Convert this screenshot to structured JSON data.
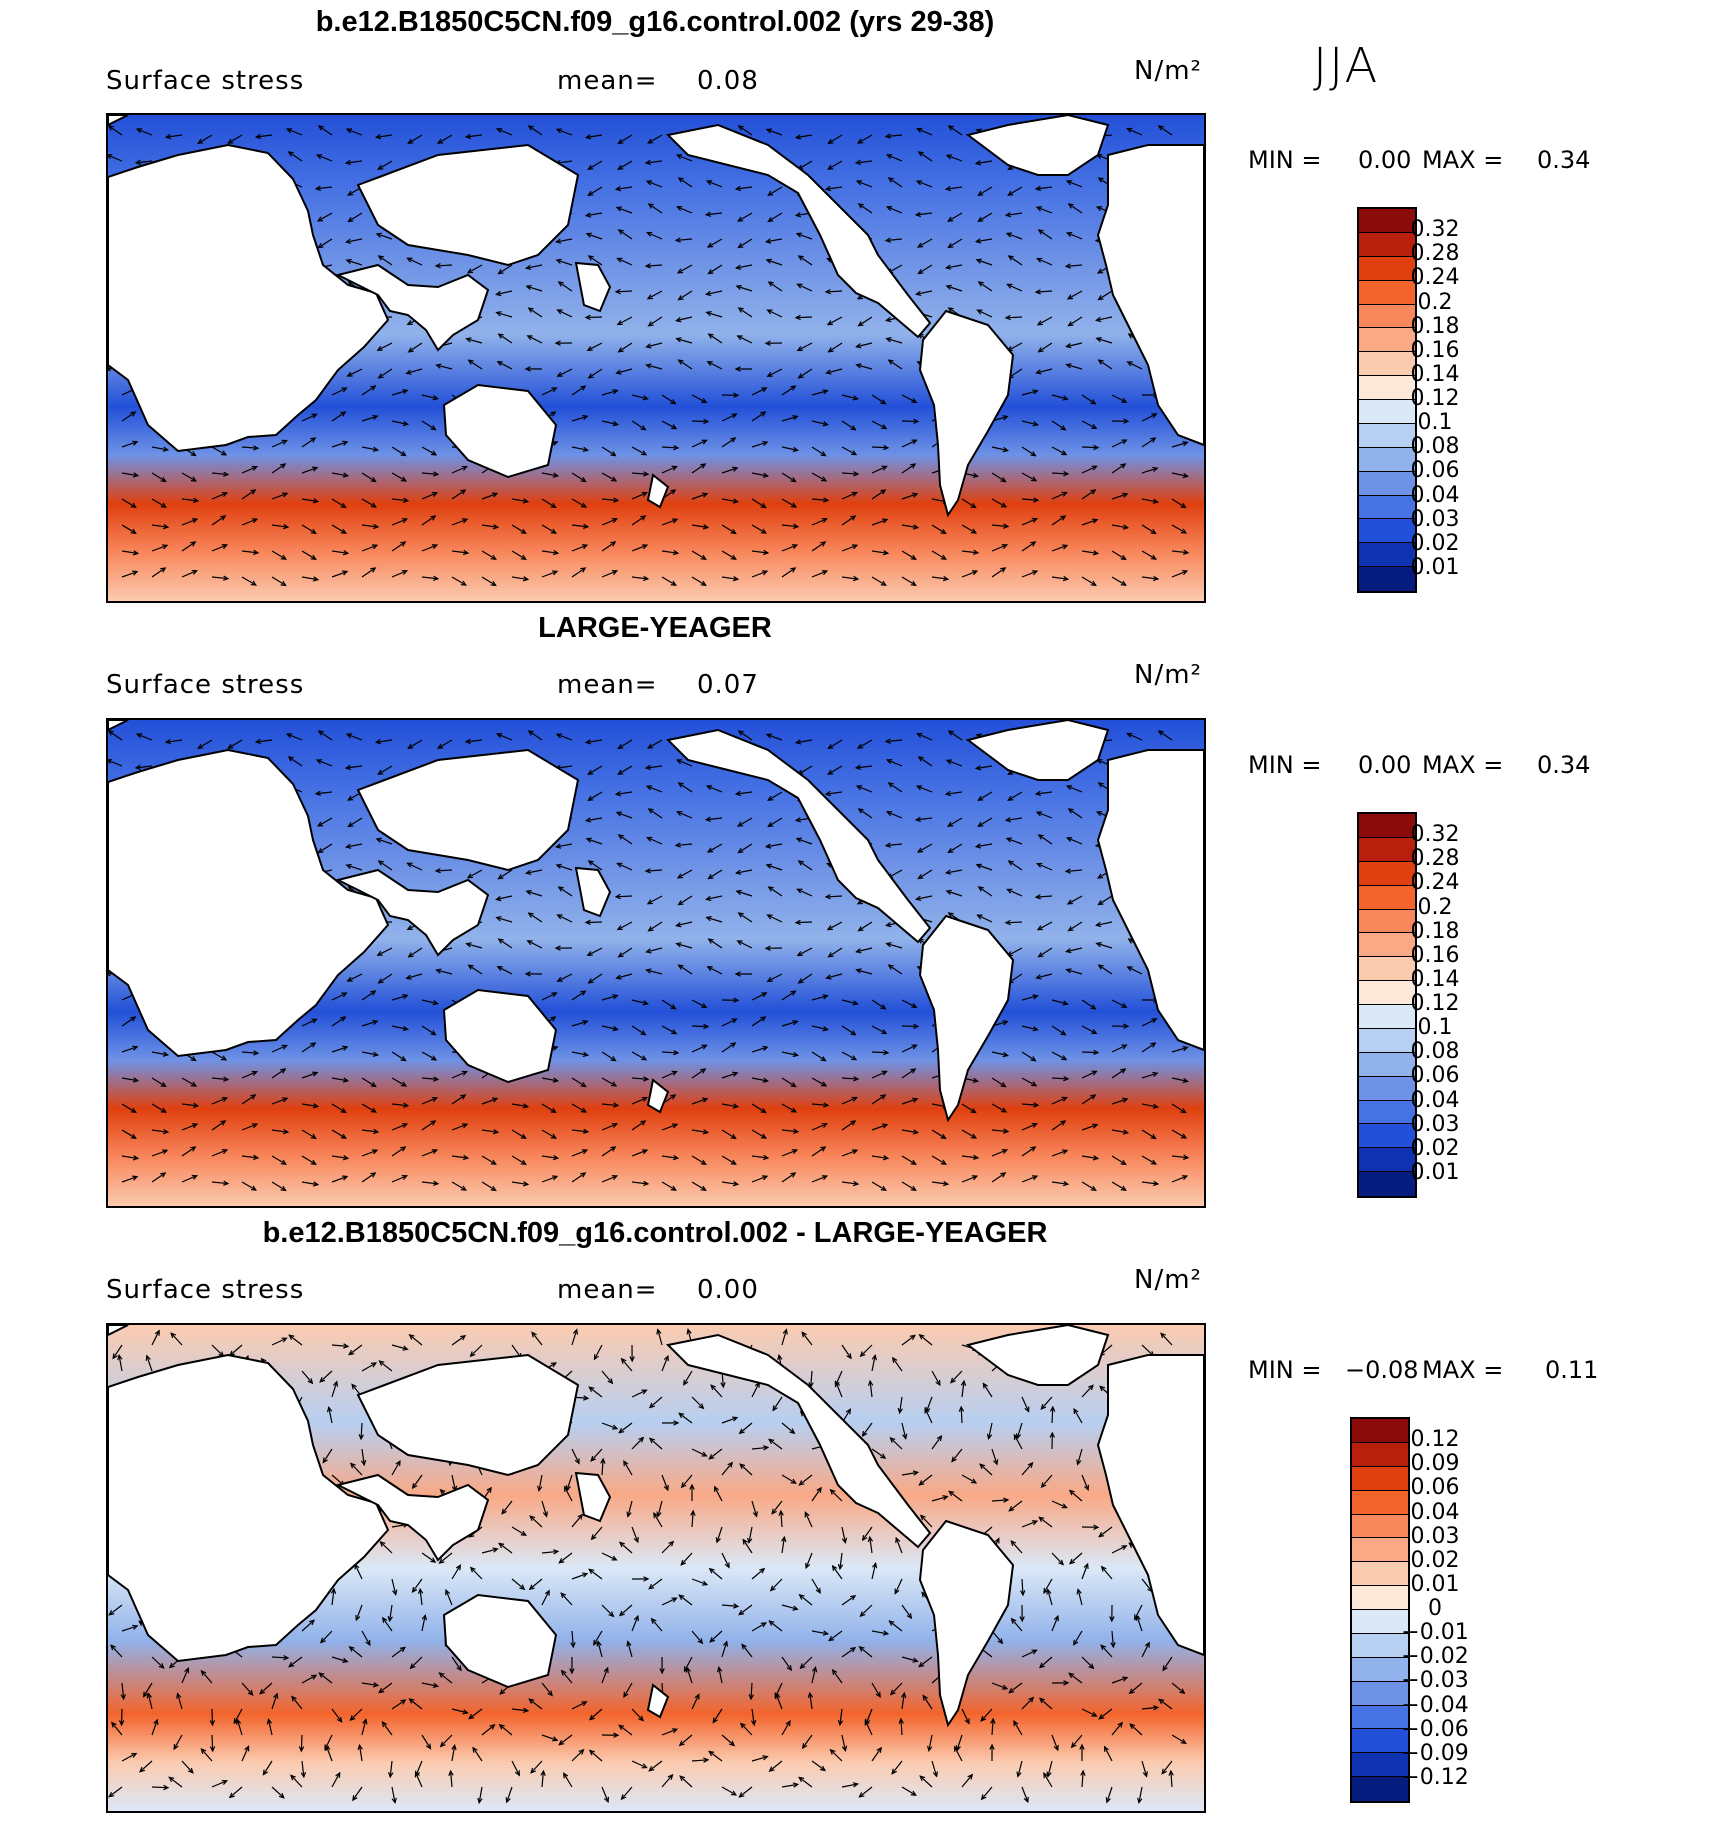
{
  "season": "JJA",
  "units": "N/m²",
  "panels": [
    {
      "title": "b.e12.B1850C5CN.f09_g16.control.002 (yrs 29-38)",
      "variable": "Surface stress",
      "mean_label": "mean=",
      "mean_value": "0.08",
      "min_label": "MIN =",
      "min_value": "0.00",
      "max_label": "MAX =",
      "max_value": "0.34",
      "colorbar": {
        "levels": [
          "0.32",
          "0.28",
          "0.24",
          "0.2",
          "0.18",
          "0.16",
          "0.14",
          "0.12",
          "0.1",
          "0.08",
          "0.06",
          "0.04",
          "0.03",
          "0.02",
          "0.01"
        ],
        "colors": [
          "#8b0a0a",
          "#b8200d",
          "#e0400f",
          "#f3642c",
          "#f8875c",
          "#f9a986",
          "#fbcbb0",
          "#fde9d9",
          "#dbe8f7",
          "#b7cff1",
          "#91b2ea",
          "#6e92e6",
          "#4672e4",
          "#2350d8",
          "#0f33b0",
          "#061c7f"
        ]
      }
    },
    {
      "title": "LARGE-YEAGER",
      "variable": "Surface stress",
      "mean_label": "mean=",
      "mean_value": "0.07",
      "min_label": "MIN =",
      "min_value": "0.00",
      "max_label": "MAX =",
      "max_value": "0.34",
      "colorbar": {
        "levels": [
          "0.32",
          "0.28",
          "0.24",
          "0.2",
          "0.18",
          "0.16",
          "0.14",
          "0.12",
          "0.1",
          "0.08",
          "0.06",
          "0.04",
          "0.03",
          "0.02",
          "0.01"
        ],
        "colors": [
          "#8b0a0a",
          "#b8200d",
          "#e0400f",
          "#f3642c",
          "#f8875c",
          "#f9a986",
          "#fbcbb0",
          "#fde9d9",
          "#dbe8f7",
          "#b7cff1",
          "#91b2ea",
          "#6e92e6",
          "#4672e4",
          "#2350d8",
          "#0f33b0",
          "#061c7f"
        ]
      }
    },
    {
      "title": "b.e12.B1850C5CN.f09_g16.control.002 - LARGE-YEAGER",
      "variable": "Surface stress",
      "mean_label": "mean=",
      "mean_value": "0.00",
      "min_label": "MIN =",
      "min_value": "−0.08",
      "max_label": "MAX =",
      "max_value": "0.11",
      "colorbar": {
        "levels": [
          "0.12",
          "0.09",
          "0.06",
          "0.04",
          "0.03",
          "0.02",
          "0.01",
          "0",
          "−0.01",
          "−0.02",
          "−0.03",
          "−0.04",
          "−0.06",
          "−0.09",
          "−0.12"
        ],
        "colors": [
          "#8b0a0a",
          "#b8200d",
          "#e0400f",
          "#f3642c",
          "#f8875c",
          "#f9a986",
          "#fbcbb0",
          "#fde9d9",
          "#dbe8f7",
          "#b7cff1",
          "#91b2ea",
          "#6e92e6",
          "#4672e4",
          "#2350d8",
          "#0f33b0",
          "#061c7f"
        ]
      }
    }
  ]
}
